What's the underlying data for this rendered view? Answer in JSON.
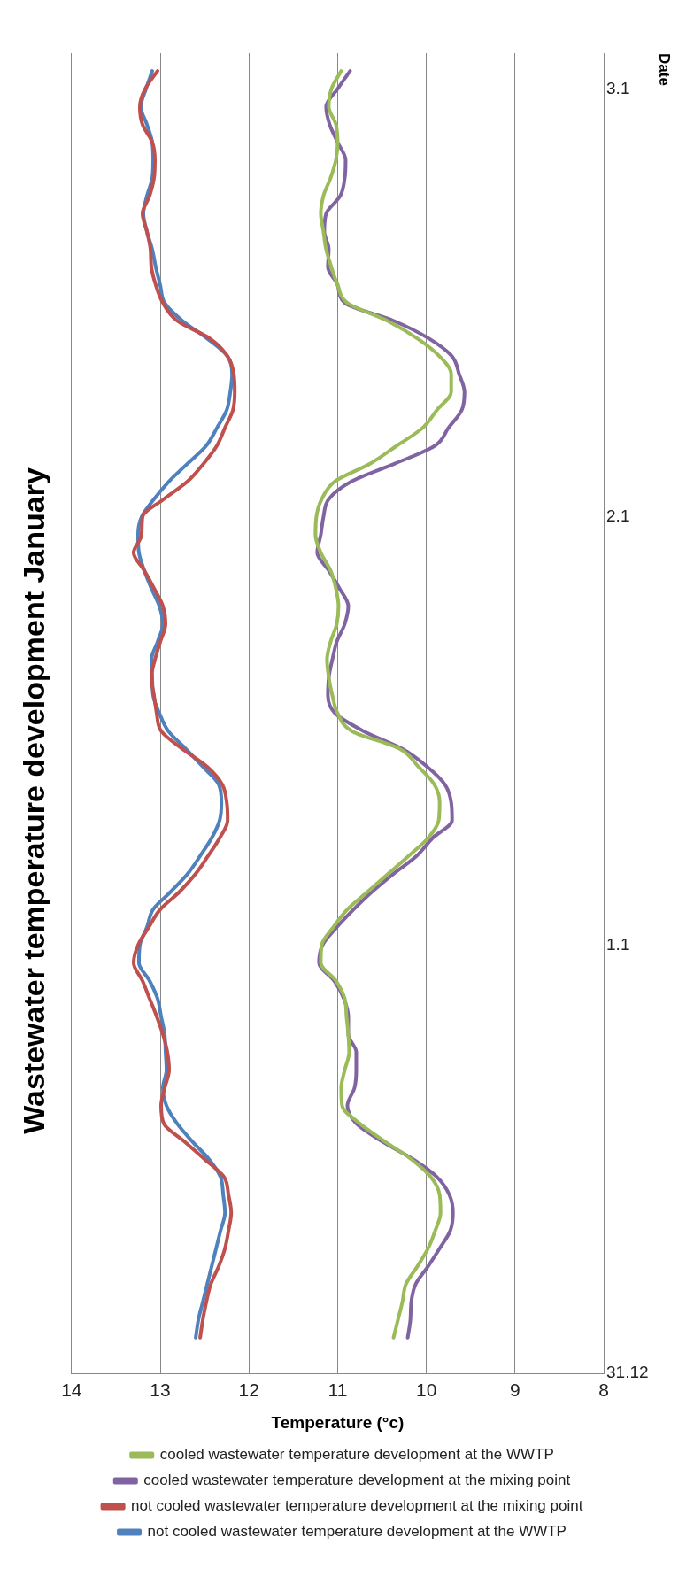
{
  "chart_data": {
    "type": "line",
    "orientation": "horizontal",
    "title": "Wastewater temperature development January",
    "xlabel": "Temperature (°c)",
    "ylabel": "Date",
    "categories": [
      null,
      null,
      "3.1",
      null,
      null,
      null,
      null,
      null,
      null,
      null,
      null,
      null,
      null,
      null,
      null,
      null,
      null,
      null,
      null,
      null,
      null,
      null,
      null,
      null,
      null,
      null,
      "2.1",
      null,
      null,
      null,
      null,
      null,
      null,
      null,
      null,
      null,
      null,
      null,
      null,
      null,
      null,
      null,
      null,
      null,
      null,
      null,
      null,
      null,
      null,
      null,
      "1.1",
      null,
      null,
      null,
      null,
      null,
      null,
      null,
      null,
      null,
      null,
      null,
      null,
      null,
      null,
      null,
      null,
      null,
      null,
      null,
      null,
      null,
      null,
      null,
      "31.12"
    ],
    "xlim": [
      14,
      8
    ],
    "xticks": [
      8,
      9,
      10,
      11,
      12,
      13,
      14
    ],
    "grid": "x",
    "legend": "bottom",
    "marker": "none",
    "line_style": "solid",
    "series": [
      {
        "name": "cooled wastewater temperature development at the WWTP",
        "color": "#9bbb59",
        "values": [
          null,
          10.96,
          11.07,
          11.1,
          11.02,
          11.0,
          11.02,
          11.08,
          11.16,
          11.19,
          11.16,
          11.13,
          11.07,
          11.0,
          10.89,
          10.44,
          10.1,
          9.85,
          9.72,
          9.72,
          9.88,
          10.04,
          10.33,
          10.63,
          11.03,
          11.18,
          11.24,
          11.25,
          11.19,
          11.08,
          11.02,
          10.99,
          11.01,
          11.08,
          11.12,
          11.1,
          11.06,
          11.0,
          10.84,
          10.3,
          10.09,
          9.91,
          9.85,
          9.86,
          9.98,
          10.2,
          10.43,
          10.66,
          10.89,
          11.05,
          11.18,
          11.19,
          11.02,
          10.92,
          10.9,
          10.88,
          10.87,
          10.92,
          10.96,
          10.95,
          10.75,
          10.47,
          10.17,
          9.95,
          9.85,
          9.84,
          9.9,
          9.98,
          10.1,
          10.23,
          10.27,
          10.32,
          10.37,
          null,
          null
        ]
      },
      {
        "name": "cooled wastewater temperature development at the mixing point",
        "color": "#8064a2",
        "values": [
          null,
          10.86,
          11.0,
          11.13,
          11.09,
          11.0,
          10.91,
          10.92,
          10.97,
          11.13,
          11.15,
          11.1,
          11.11,
          11.0,
          10.92,
          10.37,
          9.97,
          9.71,
          9.63,
          9.57,
          9.6,
          9.75,
          9.9,
          10.35,
          10.84,
          11.1,
          11.16,
          11.19,
          11.23,
          11.1,
          10.98,
          10.88,
          10.92,
          11.01,
          11.06,
          11.1,
          11.11,
          11.03,
          10.71,
          10.27,
          9.99,
          9.79,
          9.72,
          9.71,
          9.93,
          10.11,
          10.37,
          10.61,
          10.82,
          11.01,
          11.17,
          11.21,
          11.04,
          10.93,
          10.88,
          10.88,
          10.79,
          10.79,
          10.81,
          10.89,
          10.79,
          10.5,
          10.15,
          9.88,
          9.74,
          9.7,
          9.73,
          9.85,
          9.98,
          10.12,
          10.17,
          10.18,
          10.21,
          null,
          null
        ]
      },
      {
        "name": "not cooled wastewater temperature development at the mixing point",
        "color": "#c0504d",
        "values": [
          null,
          13.03,
          13.17,
          13.23,
          13.2,
          13.09,
          13.06,
          13.07,
          13.12,
          13.2,
          13.15,
          13.11,
          13.1,
          13.05,
          12.97,
          12.81,
          12.44,
          12.24,
          12.17,
          12.16,
          12.18,
          12.27,
          12.36,
          12.51,
          12.69,
          12.96,
          13.2,
          13.21,
          13.3,
          13.18,
          13.07,
          12.97,
          12.94,
          13.0,
          13.06,
          13.1,
          13.07,
          13.04,
          12.99,
          12.75,
          12.47,
          12.3,
          12.25,
          12.24,
          12.33,
          12.46,
          12.6,
          12.78,
          13.0,
          13.13,
          13.25,
          13.3,
          13.2,
          13.12,
          13.04,
          12.97,
          12.92,
          12.9,
          12.95,
          12.99,
          12.96,
          12.73,
          12.5,
          12.28,
          12.23,
          12.2,
          12.23,
          12.27,
          12.34,
          12.43,
          12.48,
          12.52,
          12.55,
          null,
          null
        ]
      },
      {
        "name": "not cooled wastewater temperature development at the WWTP",
        "color": "#4f81bd",
        "values": [
          null,
          13.09,
          13.16,
          13.22,
          13.15,
          13.09,
          13.08,
          13.09,
          13.15,
          13.19,
          13.15,
          13.09,
          13.05,
          13.0,
          12.95,
          12.75,
          12.47,
          12.24,
          12.19,
          12.21,
          12.25,
          12.36,
          12.48,
          12.69,
          12.9,
          13.07,
          13.21,
          13.25,
          13.24,
          13.18,
          13.1,
          13.01,
          12.97,
          13.03,
          13.1,
          13.09,
          13.08,
          13.01,
          12.91,
          12.71,
          12.52,
          12.34,
          12.31,
          12.33,
          12.42,
          12.55,
          12.69,
          12.88,
          13.08,
          13.15,
          13.23,
          13.24,
          13.12,
          13.03,
          12.99,
          12.95,
          12.94,
          12.93,
          12.97,
          12.93,
          12.81,
          12.64,
          12.45,
          12.32,
          12.29,
          12.27,
          12.32,
          12.37,
          12.42,
          12.47,
          12.52,
          12.57,
          12.6,
          null,
          null
        ]
      }
    ]
  }
}
